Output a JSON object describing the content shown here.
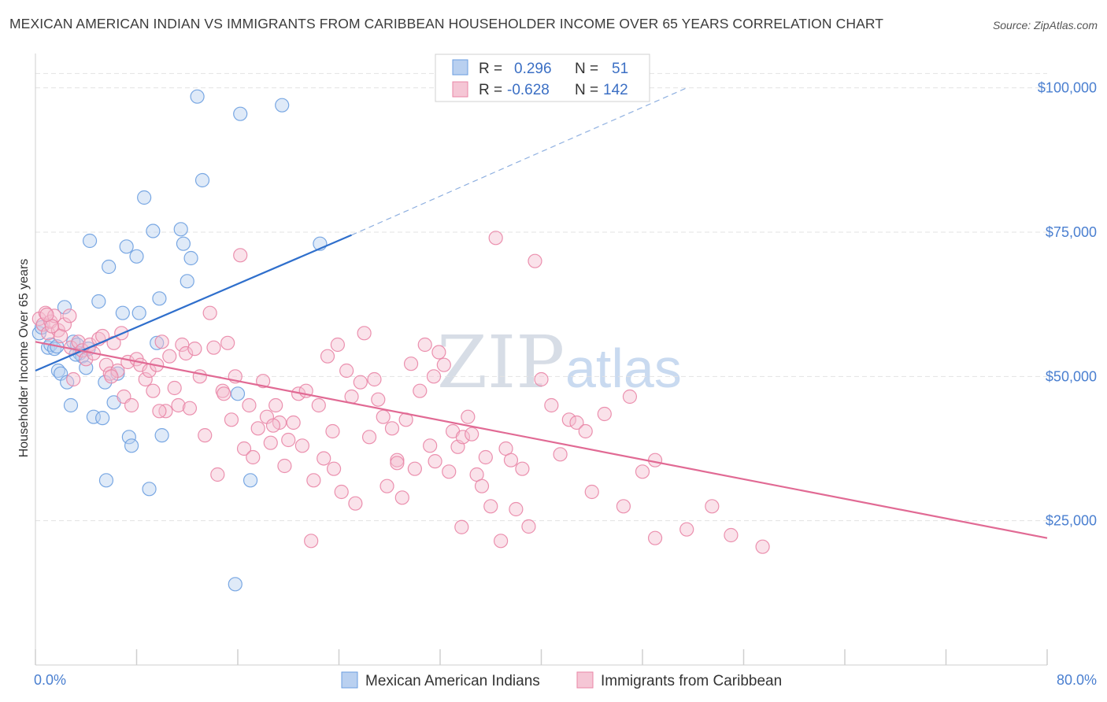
{
  "header": {
    "title": "MEXICAN AMERICAN INDIAN VS IMMIGRANTS FROM CARIBBEAN HOUSEHOLDER INCOME OVER 65 YEARS CORRELATION CHART",
    "source": "Source: ZipAtlas.com"
  },
  "watermark": {
    "zip": "ZIP",
    "atlas": "atlas"
  },
  "chart_data": {
    "type": "scatter",
    "title": "MEXICAN AMERICAN INDIAN VS IMMIGRANTS FROM CARIBBEAN HOUSEHOLDER INCOME OVER 65 YEARS CORRELATION CHART",
    "xlabel": "",
    "ylabel": "Householder Income Over 65 years",
    "xlim": [
      0,
      80
    ],
    "ylim": [
      0,
      105000
    ],
    "x_tick_labels": {
      "min": "0.0%",
      "max": "80.0%"
    },
    "y_ticks": [
      {
        "value": 25000,
        "label": "$25,000"
      },
      {
        "value": 50000,
        "label": "$50,000"
      },
      {
        "value": 75000,
        "label": "$75,000"
      },
      {
        "value": 100000,
        "label": "$100,000"
      }
    ],
    "grid": true,
    "legend": {
      "position": "top-center",
      "entries": [
        {
          "r_label": "R =",
          "r_value": "0.296",
          "n_label": "N =",
          "n_value": "51"
        },
        {
          "r_label": "R =",
          "r_value": "-0.628",
          "n_label": "N =",
          "n_value": "142"
        }
      ]
    },
    "series": [
      {
        "name": "Mexican American Indians",
        "color": "#6b9ee0",
        "fill": "#b9d0f0",
        "r": 0.296,
        "n": 51,
        "trend": {
          "x": [
            0,
            25
          ],
          "y": [
            51000,
            74500
          ],
          "dashed_to": {
            "x": 51.5,
            "y": 100000
          }
        },
        "points": [
          [
            0.3,
            57500
          ],
          [
            0.5,
            58500
          ],
          [
            1.0,
            55000
          ],
          [
            1.2,
            55500
          ],
          [
            1.5,
            54800
          ],
          [
            1.7,
            55200
          ],
          [
            1.8,
            51000
          ],
          [
            2.0,
            50500
          ],
          [
            2.3,
            62000
          ],
          [
            2.5,
            49000
          ],
          [
            2.8,
            45000
          ],
          [
            3.0,
            56000
          ],
          [
            3.3,
            55500
          ],
          [
            3.5,
            54000
          ],
          [
            3.7,
            53500
          ],
          [
            4.0,
            51500
          ],
          [
            4.3,
            73500
          ],
          [
            4.6,
            43000
          ],
          [
            5.0,
            63000
          ],
          [
            5.3,
            42800
          ],
          [
            5.5,
            49000
          ],
          [
            5.8,
            69000
          ],
          [
            6.2,
            45500
          ],
          [
            6.5,
            50500
          ],
          [
            6.9,
            61000
          ],
          [
            7.2,
            72500
          ],
          [
            7.4,
            39500
          ],
          [
            7.6,
            38000
          ],
          [
            8.0,
            70800
          ],
          [
            8.2,
            61000
          ],
          [
            8.6,
            81000
          ],
          [
            9.0,
            30500
          ],
          [
            9.3,
            75200
          ],
          [
            9.6,
            55800
          ],
          [
            9.8,
            63500
          ],
          [
            10.0,
            39800
          ],
          [
            11.5,
            75500
          ],
          [
            11.7,
            73000
          ],
          [
            12.0,
            66500
          ],
          [
            12.3,
            70500
          ],
          [
            12.8,
            98500
          ],
          [
            13.2,
            84000
          ],
          [
            15.8,
            14000
          ],
          [
            16.0,
            47000
          ],
          [
            16.2,
            95500
          ],
          [
            17.0,
            32000
          ],
          [
            19.5,
            97000
          ],
          [
            22.5,
            73000
          ],
          [
            5.6,
            32000
          ],
          [
            3.2,
            53800
          ],
          [
            4.2,
            54800
          ]
        ]
      },
      {
        "name": "Immigrants from Caribbean",
        "color": "#e985a6",
        "fill": "#f5bfd0",
        "r": -0.628,
        "n": 142,
        "trend": {
          "x": [
            0,
            80
          ],
          "y": [
            56000,
            22000
          ]
        },
        "points": [
          [
            0.3,
            60000
          ],
          [
            0.6,
            59000
          ],
          [
            0.8,
            61000
          ],
          [
            1.0,
            57500
          ],
          [
            1.2,
            59500
          ],
          [
            1.5,
            60500
          ],
          [
            1.8,
            58000
          ],
          [
            2.0,
            57000
          ],
          [
            2.3,
            59000
          ],
          [
            2.8,
            55000
          ],
          [
            3.0,
            49500
          ],
          [
            3.4,
            56000
          ],
          [
            3.7,
            54500
          ],
          [
            4.0,
            53000
          ],
          [
            4.3,
            55500
          ],
          [
            4.6,
            54000
          ],
          [
            5.0,
            56500
          ],
          [
            5.3,
            57000
          ],
          [
            5.6,
            52000
          ],
          [
            5.9,
            50500
          ],
          [
            6.2,
            55800
          ],
          [
            6.5,
            51000
          ],
          [
            6.8,
            57500
          ],
          [
            7.0,
            46500
          ],
          [
            7.3,
            52500
          ],
          [
            7.6,
            45000
          ],
          [
            8.0,
            53000
          ],
          [
            8.3,
            52000
          ],
          [
            8.7,
            49500
          ],
          [
            9.0,
            51000
          ],
          [
            9.3,
            47500
          ],
          [
            9.6,
            52000
          ],
          [
            10.0,
            56000
          ],
          [
            10.3,
            44000
          ],
          [
            10.6,
            53500
          ],
          [
            11.0,
            48000
          ],
          [
            11.3,
            45000
          ],
          [
            11.6,
            55500
          ],
          [
            11.9,
            54000
          ],
          [
            12.2,
            44500
          ],
          [
            12.6,
            54800
          ],
          [
            13.0,
            50000
          ],
          [
            13.4,
            39800
          ],
          [
            13.8,
            61000
          ],
          [
            14.1,
            55000
          ],
          [
            14.4,
            33000
          ],
          [
            14.8,
            47500
          ],
          [
            15.2,
            55800
          ],
          [
            15.5,
            42500
          ],
          [
            15.8,
            50000
          ],
          [
            16.2,
            71000
          ],
          [
            16.5,
            37500
          ],
          [
            16.9,
            45000
          ],
          [
            17.2,
            36000
          ],
          [
            17.6,
            41000
          ],
          [
            18.0,
            49200
          ],
          [
            18.3,
            43000
          ],
          [
            18.6,
            38500
          ],
          [
            19.0,
            45000
          ],
          [
            19.3,
            42000
          ],
          [
            19.7,
            34500
          ],
          [
            20.0,
            39000
          ],
          [
            20.4,
            42000
          ],
          [
            20.8,
            47000
          ],
          [
            21.1,
            38000
          ],
          [
            21.4,
            47500
          ],
          [
            21.8,
            21500
          ],
          [
            22.0,
            32000
          ],
          [
            22.4,
            45000
          ],
          [
            22.8,
            35800
          ],
          [
            23.1,
            53500
          ],
          [
            23.5,
            40500
          ],
          [
            23.9,
            55500
          ],
          [
            24.2,
            30000
          ],
          [
            24.6,
            51000
          ],
          [
            25.0,
            46500
          ],
          [
            25.3,
            28000
          ],
          [
            25.7,
            49000
          ],
          [
            26.0,
            57500
          ],
          [
            26.4,
            39500
          ],
          [
            26.8,
            49500
          ],
          [
            27.1,
            46000
          ],
          [
            27.5,
            43000
          ],
          [
            27.8,
            31000
          ],
          [
            28.2,
            41000
          ],
          [
            28.6,
            35500
          ],
          [
            29.0,
            29000
          ],
          [
            29.3,
            42500
          ],
          [
            29.7,
            52200
          ],
          [
            30.0,
            34000
          ],
          [
            30.4,
            47500
          ],
          [
            30.8,
            55500
          ],
          [
            31.2,
            38000
          ],
          [
            31.5,
            50000
          ],
          [
            31.9,
            54200
          ],
          [
            32.3,
            52000
          ],
          [
            32.7,
            33500
          ],
          [
            33.0,
            40500
          ],
          [
            33.4,
            37800
          ],
          [
            33.8,
            39500
          ],
          [
            34.2,
            43000
          ],
          [
            34.5,
            40000
          ],
          [
            34.9,
            33000
          ],
          [
            35.3,
            31000
          ],
          [
            35.6,
            36000
          ],
          [
            36.0,
            27500
          ],
          [
            36.4,
            74000
          ],
          [
            36.8,
            21500
          ],
          [
            37.2,
            37500
          ],
          [
            37.6,
            35500
          ],
          [
            38.0,
            27000
          ],
          [
            38.5,
            34000
          ],
          [
            39.0,
            24000
          ],
          [
            39.5,
            70000
          ],
          [
            40.0,
            49500
          ],
          [
            40.8,
            45000
          ],
          [
            41.5,
            36500
          ],
          [
            42.2,
            42500
          ],
          [
            42.8,
            42000
          ],
          [
            43.5,
            40500
          ],
          [
            44.0,
            30000
          ],
          [
            45.0,
            43500
          ],
          [
            46.5,
            27500
          ],
          [
            47.0,
            46500
          ],
          [
            48.0,
            33500
          ],
          [
            49.0,
            35500
          ],
          [
            28.6,
            35000
          ],
          [
            31.6,
            35300
          ],
          [
            33.7,
            23900
          ],
          [
            49.0,
            22000
          ],
          [
            51.5,
            23500
          ],
          [
            53.5,
            27500
          ],
          [
            55.0,
            22500
          ],
          [
            57.5,
            20500
          ],
          [
            23.6,
            34000
          ],
          [
            18.8,
            41500
          ],
          [
            14.9,
            47000
          ],
          [
            9.8,
            44000
          ],
          [
            6.0,
            50000
          ],
          [
            2.7,
            60500
          ],
          [
            1.3,
            58700
          ],
          [
            0.9,
            60700
          ]
        ]
      }
    ]
  },
  "bottom_legend": {
    "items": [
      {
        "label": "Mexican American Indians",
        "color": "#b9d0f0",
        "border": "#6b9ee0"
      },
      {
        "label": "Immigrants from Caribbean",
        "color": "#f5c6d5",
        "border": "#e985a6"
      }
    ]
  }
}
